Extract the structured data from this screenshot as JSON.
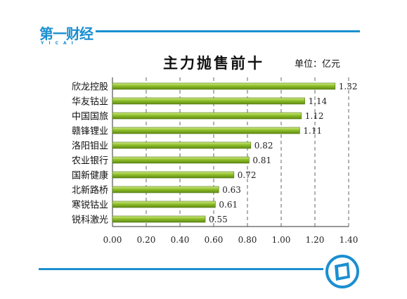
{
  "brand": {
    "name": "第一财经",
    "sub": "YICAI"
  },
  "colors": {
    "accent": "#1b8fd0",
    "bar": "#8fbf2a",
    "bar_light": "#d4ec8a"
  },
  "chart_data": {
    "type": "bar",
    "orientation": "horizontal",
    "title": "主力抛售前十",
    "unit_label": "单位：亿元",
    "categories": [
      "欣龙控股",
      "华友钴业",
      "中国国旅",
      "赣锋锂业",
      "洛阳钼业",
      "农业银行",
      "国新健康",
      "北新路桥",
      "寒锐钴业",
      "锐科激光"
    ],
    "values": [
      1.32,
      1.14,
      1.12,
      1.11,
      0.82,
      0.81,
      0.72,
      0.63,
      0.61,
      0.55
    ],
    "value_labels": [
      "1.32",
      "1.14",
      "1.12",
      "1.11",
      "0.82",
      "0.81",
      "0.72",
      "0.63",
      "0.61",
      "0.55"
    ],
    "xlim": [
      0,
      1.4
    ],
    "xticks": [
      "0.00",
      "0.20",
      "0.40",
      "0.60",
      "0.80",
      "1.00",
      "1.20",
      "1.40"
    ],
    "grid": "vertical-dashed",
    "legend": "none"
  }
}
